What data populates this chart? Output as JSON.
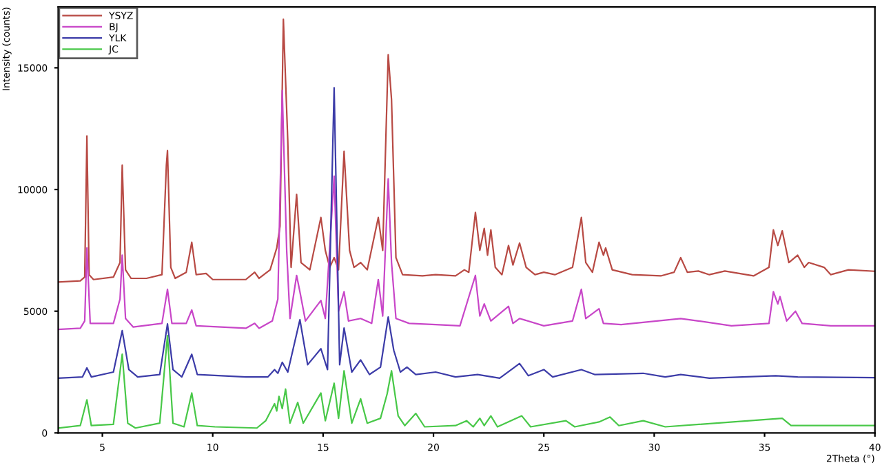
{
  "chart_data": {
    "type": "line",
    "xlabel": "2Theta (°)",
    "ylabel": "Intensity (counts)",
    "xlim": [
      3,
      40
    ],
    "ylim": [
      0,
      17500
    ],
    "xticks": [
      5,
      10,
      15,
      20,
      25,
      30,
      35,
      40
    ],
    "yticks": [
      0,
      5000,
      10000,
      15000
    ],
    "grid": false,
    "legend": "top left",
    "marker": "none",
    "line_style": "solid",
    "series": [
      {
        "name": "YSYZ",
        "color": "#b84a44",
        "x": [
          3.0,
          4.0,
          4.2,
          4.3,
          4.4,
          4.6,
          5.5,
          5.8,
          5.9,
          6.05,
          6.3,
          7.0,
          7.7,
          7.9,
          7.95,
          8.1,
          8.3,
          8.8,
          9.05,
          9.25,
          9.7,
          10.0,
          11.5,
          11.9,
          12.1,
          12.6,
          12.9,
          13.05,
          13.2,
          13.4,
          13.55,
          13.8,
          14.0,
          14.4,
          14.9,
          15.1,
          15.3,
          15.5,
          15.7,
          15.95,
          16.2,
          16.4,
          16.7,
          17.0,
          17.5,
          17.7,
          17.95,
          18.1,
          18.3,
          18.6,
          19.5,
          20.1,
          21.0,
          21.4,
          21.6,
          21.9,
          22.1,
          22.3,
          22.45,
          22.6,
          22.8,
          23.1,
          23.4,
          23.6,
          23.9,
          24.2,
          24.6,
          25.0,
          25.5,
          26.3,
          26.7,
          26.9,
          27.2,
          27.5,
          27.7,
          27.8,
          28.1,
          29.0,
          30.3,
          30.9,
          31.2,
          31.5,
          32.0,
          32.5,
          33.2,
          34.5,
          35.2,
          35.4,
          35.6,
          35.8,
          36.1,
          36.5,
          36.8,
          37.0,
          37.7,
          38.0,
          38.8,
          40.0
        ],
        "values": [
          6200,
          6250,
          6400,
          12200,
          6500,
          6300,
          6400,
          7000,
          11000,
          6700,
          6350,
          6350,
          6500,
          11000,
          11600,
          6800,
          6350,
          6600,
          7830,
          6500,
          6550,
          6300,
          6300,
          6600,
          6350,
          6700,
          7600,
          8500,
          17000,
          12000,
          6800,
          9800,
          7000,
          6700,
          8850,
          7500,
          6800,
          7200,
          6700,
          11570,
          7500,
          6800,
          7000,
          6700,
          8850,
          7500,
          15540,
          13700,
          7200,
          6500,
          6450,
          6500,
          6450,
          6700,
          6600,
          9060,
          7500,
          8400,
          7300,
          8340,
          6800,
          6500,
          7700,
          6900,
          7800,
          6800,
          6500,
          6600,
          6500,
          6800,
          8850,
          7000,
          6600,
          7830,
          7300,
          7600,
          6700,
          6500,
          6450,
          6600,
          7200,
          6600,
          6650,
          6500,
          6650,
          6450,
          6800,
          8340,
          7700,
          8300,
          7000,
          7300,
          6800,
          7000,
          6800,
          6500,
          6700,
          6640
        ]
      },
      {
        "name": "BJ",
        "color": "#c846c8",
        "x": [
          3.0,
          4.0,
          4.2,
          4.3,
          4.45,
          5.5,
          5.8,
          5.9,
          6.05,
          6.4,
          7.7,
          7.95,
          8.15,
          8.8,
          9.05,
          9.25,
          11.5,
          11.9,
          12.1,
          12.7,
          12.95,
          13.15,
          13.35,
          13.5,
          13.8,
          13.95,
          14.2,
          14.9,
          15.1,
          15.5,
          15.7,
          15.95,
          16.15,
          16.7,
          17.2,
          17.5,
          17.7,
          17.95,
          18.1,
          18.3,
          18.9,
          20.1,
          21.2,
          21.9,
          22.1,
          22.3,
          22.6,
          23.4,
          23.6,
          23.9,
          25.0,
          26.3,
          26.7,
          26.9,
          27.5,
          27.7,
          28.5,
          31.2,
          32.0,
          33.5,
          35.2,
          35.4,
          35.6,
          35.7,
          36.0,
          36.4,
          36.7,
          38.0,
          40.0
        ],
        "values": [
          4250,
          4300,
          4600,
          7600,
          4500,
          4500,
          5500,
          7300,
          4700,
          4350,
          4500,
          5900,
          4500,
          4500,
          5050,
          4400,
          4300,
          4500,
          4300,
          4600,
          5500,
          14070,
          7500,
          4700,
          6470,
          5800,
          4600,
          5440,
          4700,
          10550,
          5000,
          5800,
          4600,
          4700,
          4500,
          6300,
          4800,
          10440,
          7000,
          4700,
          4500,
          4450,
          4400,
          6470,
          4800,
          5300,
          4600,
          5200,
          4500,
          4700,
          4400,
          4600,
          5900,
          4700,
          5100,
          4500,
          4450,
          4700,
          4600,
          4400,
          4500,
          5800,
          5300,
          5600,
          4600,
          5000,
          4500,
          4400,
          4400
        ]
      },
      {
        "name": "YLK",
        "color": "#3c3ca8",
        "x": [
          3.0,
          4.1,
          4.3,
          4.5,
          5.5,
          5.9,
          6.2,
          6.6,
          7.6,
          7.95,
          8.2,
          8.6,
          9.05,
          9.3,
          11.5,
          12.5,
          12.8,
          12.95,
          13.15,
          13.4,
          13.95,
          14.3,
          14.9,
          15.2,
          15.5,
          15.75,
          15.95,
          16.3,
          16.7,
          17.1,
          17.6,
          17.95,
          18.2,
          18.5,
          18.8,
          19.2,
          20.1,
          21.0,
          22.0,
          23.0,
          23.9,
          24.3,
          25.0,
          25.4,
          26.7,
          27.3,
          29.5,
          30.5,
          31.2,
          32.5,
          35.5,
          36.5,
          40.0
        ],
        "values": [
          2250,
          2300,
          2670,
          2300,
          2500,
          4200,
          2600,
          2300,
          2400,
          4480,
          2600,
          2300,
          3230,
          2400,
          2300,
          2300,
          2600,
          2450,
          2900,
          2500,
          4650,
          2800,
          3460,
          2600,
          14180,
          2800,
          4310,
          2500,
          3000,
          2400,
          2700,
          4760,
          3400,
          2500,
          2700,
          2400,
          2500,
          2300,
          2400,
          2250,
          2850,
          2350,
          2600,
          2300,
          2600,
          2400,
          2450,
          2300,
          2400,
          2250,
          2350,
          2300,
          2270
        ]
      },
      {
        "name": "JC",
        "color": "#48c848",
        "x": [
          3.0,
          4.0,
          4.3,
          4.5,
          5.5,
          5.9,
          6.15,
          6.5,
          7.6,
          7.95,
          8.2,
          8.7,
          9.05,
          9.3,
          10.1,
          12.0,
          12.4,
          12.8,
          12.9,
          13.0,
          13.15,
          13.3,
          13.5,
          13.85,
          14.1,
          14.9,
          15.1,
          15.5,
          15.7,
          15.95,
          16.3,
          16.7,
          17.0,
          17.6,
          17.9,
          18.1,
          18.4,
          18.7,
          19.2,
          19.6,
          21.0,
          21.5,
          21.8,
          22.1,
          22.3,
          22.6,
          22.9,
          24.0,
          24.4,
          26.0,
          26.4,
          27.5,
          28.0,
          28.4,
          29.5,
          30.5,
          35.8,
          36.2,
          40.0
        ],
        "values": [
          200,
          300,
          1360,
          300,
          350,
          3230,
          400,
          200,
          400,
          4000,
          400,
          250,
          1640,
          300,
          250,
          200,
          500,
          1200,
          900,
          1500,
          1000,
          1800,
          400,
          1250,
          400,
          1640,
          500,
          2040,
          600,
          2550,
          400,
          1400,
          400,
          600,
          1600,
          2550,
          700,
          300,
          800,
          250,
          300,
          500,
          250,
          600,
          300,
          700,
          250,
          700,
          250,
          500,
          250,
          450,
          650,
          300,
          500,
          250,
          600,
          300,
          300
        ]
      }
    ]
  }
}
